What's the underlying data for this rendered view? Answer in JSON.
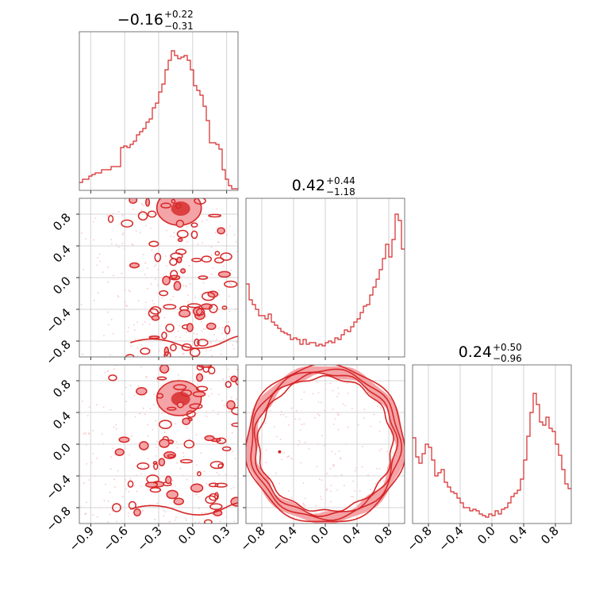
{
  "chart_data": {
    "type": "corner",
    "color": "#d62728",
    "params": [
      {
        "summary": {
          "median": "0.16",
          "median_sign": "−",
          "plus": "+0.22",
          "minus": "−0.31"
        },
        "range": [
          -1.0,
          0.4
        ],
        "ticks": [
          -0.9,
          -0.6,
          -0.3,
          0.0,
          0.3
        ],
        "tick_labels": [
          "−0.9",
          "−0.6",
          "−0.3",
          "0.0",
          "0.3"
        ]
      },
      {
        "summary": {
          "median": "0.42",
          "median_sign": "",
          "plus": "+0.44",
          "minus": "−1.18"
        },
        "range": [
          -1.0,
          1.0
        ],
        "ticks": [
          -0.8,
          -0.4,
          0.0,
          0.4,
          0.8
        ],
        "tick_labels": [
          "−0.8",
          "−0.4",
          "0.0",
          "0.4",
          "0.8"
        ]
      },
      {
        "summary": {
          "median": "0.24",
          "median_sign": "",
          "plus": "+0.50",
          "minus": "−0.96"
        },
        "range": [
          -1.0,
          1.0
        ],
        "ticks": [
          -0.8,
          -0.4,
          0.0,
          0.4,
          0.8
        ],
        "tick_labels": [
          "−0.8",
          "−0.4",
          "0.0",
          "0.4",
          "0.8"
        ]
      }
    ],
    "histograms": [
      {
        "param": 0,
        "bins": 50,
        "counts": [
          0.05,
          0.07,
          0.07,
          0.09,
          0.1,
          0.11,
          0.11,
          0.13,
          0.13,
          0.13,
          0.15,
          0.15,
          0.15,
          0.27,
          0.28,
          0.27,
          0.29,
          0.31,
          0.35,
          0.37,
          0.39,
          0.43,
          0.45,
          0.52,
          0.55,
          0.62,
          0.67,
          0.76,
          0.82,
          0.88,
          0.85,
          0.83,
          0.84,
          0.85,
          0.82,
          0.76,
          0.66,
          0.63,
          0.6,
          0.53,
          0.44,
          0.3,
          0.3,
          0.29,
          0.26,
          0.13,
          0.07,
          0.03,
          0.01,
          0.01
        ]
      },
      {
        "param": 1,
        "bins": 50,
        "counts": [
          0.46,
          0.36,
          0.33,
          0.3,
          0.26,
          0.26,
          0.24,
          0.27,
          0.22,
          0.2,
          0.18,
          0.16,
          0.15,
          0.14,
          0.11,
          0.12,
          0.11,
          0.08,
          0.11,
          0.08,
          0.09,
          0.09,
          0.07,
          0.08,
          0.07,
          0.09,
          0.1,
          0.09,
          0.12,
          0.11,
          0.14,
          0.17,
          0.16,
          0.19,
          0.22,
          0.24,
          0.28,
          0.32,
          0.33,
          0.39,
          0.44,
          0.49,
          0.55,
          0.62,
          0.71,
          0.63,
          0.74,
          0.9,
          0.86,
          0.68
        ]
      },
      {
        "param": 2,
        "bins": 50,
        "counts": [
          0.54,
          0.42,
          0.38,
          0.44,
          0.5,
          0.48,
          0.4,
          0.3,
          0.32,
          0.34,
          0.26,
          0.23,
          0.2,
          0.19,
          0.16,
          0.13,
          0.1,
          0.1,
          0.08,
          0.09,
          0.08,
          0.06,
          0.05,
          0.04,
          0.06,
          0.05,
          0.08,
          0.06,
          0.09,
          0.1,
          0.13,
          0.17,
          0.19,
          0.21,
          0.28,
          0.4,
          0.55,
          0.7,
          0.82,
          0.75,
          0.64,
          0.62,
          0.67,
          0.6,
          0.58,
          0.5,
          0.43,
          0.34,
          0.25,
          0.22
        ]
      }
    ],
    "contours": [
      {
        "x_param": 0,
        "y_param": 1,
        "filled": true,
        "fill": "#f4a3a6",
        "peak": [
          -0.12,
          0.88
        ],
        "points": "scattered"
      },
      {
        "x_param": 0,
        "y_param": 2,
        "filled": true,
        "fill": "#f4a3a6",
        "peak": [
          -0.12,
          0.58
        ],
        "points": "scattered"
      },
      {
        "x_param": 1,
        "y_param": 2,
        "filled": true,
        "fill": "#f4a3a6",
        "shape": "ring",
        "radius": 0.96
      }
    ]
  }
}
